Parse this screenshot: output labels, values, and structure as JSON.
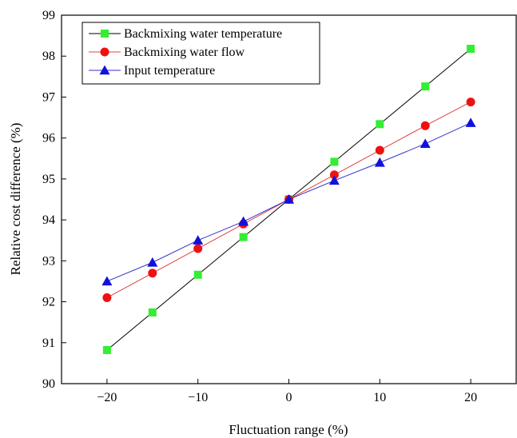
{
  "chart_data": {
    "type": "line",
    "title": "",
    "xlabel": "Fluctuation range (%)",
    "ylabel": "Relative cost difference (%)",
    "x": [
      -20,
      -15,
      -10,
      -5,
      0,
      5,
      10,
      15,
      20
    ],
    "xlim": [
      -25,
      25
    ],
    "ylim": [
      90,
      99
    ],
    "xticks": [
      -20,
      -10,
      0,
      10,
      20
    ],
    "yticks": [
      90,
      91,
      92,
      93,
      94,
      95,
      96,
      97,
      98,
      99
    ],
    "x_tick_labels": [
      "−20",
      "−10",
      "0",
      "10",
      "20"
    ],
    "y_tick_labels": [
      "90",
      "91",
      "92",
      "93",
      "94",
      "95",
      "96",
      "97",
      "98",
      "99"
    ],
    "grid": false,
    "legend_position": "top-left",
    "series": [
      {
        "name": "Backmixing water temperature",
        "marker": "square",
        "marker_color": "#33ee33",
        "line_color": "#000000",
        "values": [
          90.82,
          91.74,
          92.66,
          93.58,
          94.5,
          95.42,
          96.34,
          97.26,
          98.18
        ]
      },
      {
        "name": "Backmixing water flow",
        "marker": "circle",
        "marker_color": "#ee1111",
        "line_color": "#e04040",
        "values": [
          92.1,
          92.7,
          93.3,
          93.9,
          94.5,
          95.1,
          95.7,
          96.3,
          96.88
        ]
      },
      {
        "name": "Input temperature",
        "marker": "triangle",
        "marker_color": "#1111dd",
        "line_color": "#3333cc",
        "values": [
          92.5,
          92.96,
          93.5,
          93.96,
          94.5,
          94.96,
          95.4,
          95.86,
          96.37
        ]
      }
    ]
  }
}
